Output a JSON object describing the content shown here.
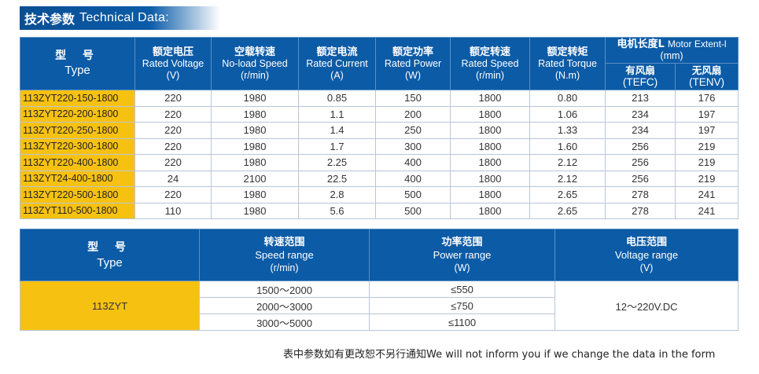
{
  "section": {
    "title_cn": "技术参数",
    "title_en": "Technical Data:"
  },
  "spec_table": {
    "header": {
      "type": {
        "cn": "型 号",
        "en": "Type"
      },
      "columns": [
        {
          "cn": "额定电压",
          "en": "Rated Voltage",
          "unit": "(V)"
        },
        {
          "cn": "空载转速",
          "en": "No-load Speed",
          "unit": "(r/min)"
        },
        {
          "cn": "额定电流",
          "en": "Rated Current",
          "unit": "(A)"
        },
        {
          "cn": "额定功率",
          "en": "Rated Power",
          "unit": "(W)"
        },
        {
          "cn": "额定转速",
          "en": "Rated Speed",
          "unit": "(r/min)"
        },
        {
          "cn": "额定转矩",
          "en": "Rated Torque",
          "unit": "(N.m)"
        }
      ],
      "length": {
        "cn": "电机长度L",
        "en": "Motor Extent-l",
        "unit": "(mm)",
        "sub": [
          {
            "cn": "有风扇",
            "en": "(TEFC)"
          },
          {
            "cn": "无风扇",
            "en": "(TENV)"
          }
        ]
      }
    },
    "rows": [
      {
        "model": "113ZYT220-150-1800",
        "voltage": "220",
        "noload": "1980",
        "current": "0.85",
        "power": "150",
        "speed": "1800",
        "torque": "0.80",
        "tefc": "213",
        "tenv": "176"
      },
      {
        "model": "113ZYT220-200-1800",
        "voltage": "220",
        "noload": "1980",
        "current": "1.1",
        "power": "200",
        "speed": "1800",
        "torque": "1.06",
        "tefc": "234",
        "tenv": "197"
      },
      {
        "model": "113ZYT220-250-1800",
        "voltage": "220",
        "noload": "1980",
        "current": "1.4",
        "power": "250",
        "speed": "1800",
        "torque": "1.33",
        "tefc": "234",
        "tenv": "197"
      },
      {
        "model": "113ZYT220-300-1800",
        "voltage": "220",
        "noload": "1980",
        "current": "1.7",
        "power": "300",
        "speed": "1800",
        "torque": "1.60",
        "tefc": "256",
        "tenv": "219"
      },
      {
        "model": "113ZYT220-400-1800",
        "voltage": "220",
        "noload": "1980",
        "current": "2.25",
        "power": "400",
        "speed": "1800",
        "torque": "2.12",
        "tefc": "256",
        "tenv": "219"
      },
      {
        "model": "113ZYT24-400-1800",
        "voltage": "24",
        "noload": "2100",
        "current": "22.5",
        "power": "400",
        "speed": "1800",
        "torque": "2.12",
        "tefc": "256",
        "tenv": "219"
      },
      {
        "model": "113ZYT220-500-1800",
        "voltage": "220",
        "noload": "1980",
        "current": "2.8",
        "power": "500",
        "speed": "1800",
        "torque": "2.65",
        "tefc": "278",
        "tenv": "241"
      },
      {
        "model": "113ZYT110-500-1800",
        "voltage": "110",
        "noload": "1980",
        "current": "5.6",
        "power": "500",
        "speed": "1800",
        "torque": "2.65",
        "tefc": "278",
        "tenv": "241"
      }
    ]
  },
  "range_table": {
    "header": {
      "type": {
        "cn": "型 号",
        "en": "Type"
      },
      "speed": {
        "cn": "转速范围",
        "en": "Speed range",
        "unit": "(r/min)"
      },
      "power": {
        "cn": "功率范围",
        "en": "Power range",
        "unit": "(W)"
      },
      "voltage": {
        "cn": "电压范围",
        "en": "Voltage range",
        "unit": "(V)"
      }
    },
    "model": "113ZYT",
    "speed_ranges": [
      "1500～2000",
      "2000～3000",
      "3000～5000"
    ],
    "power_ranges": [
      "≤550",
      "≤750",
      "≤1100"
    ],
    "voltage_range": "12～220V.DC"
  },
  "footnote": "表中参数如有更改恕不另行通知We will not inform you if we change the data in the form"
}
